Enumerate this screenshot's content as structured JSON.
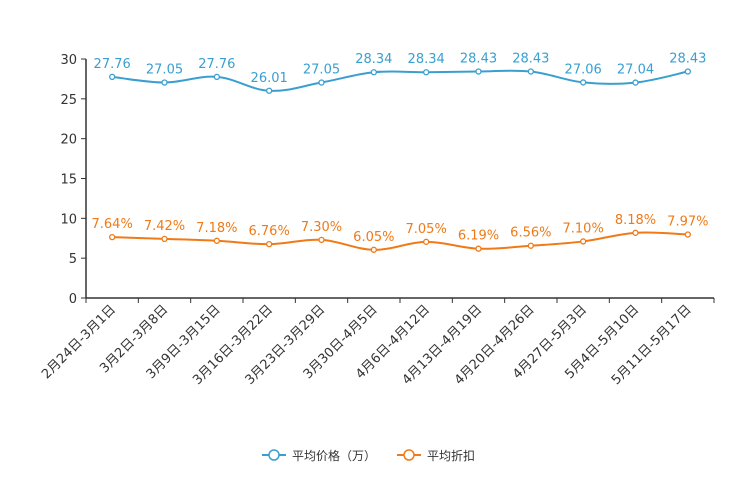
{
  "chart_data": {
    "type": "line",
    "title": "",
    "xlabel": "",
    "ylabel": "",
    "ylim": [
      0,
      30
    ],
    "yticks": [
      0,
      5,
      10,
      15,
      20,
      25,
      30
    ],
    "grid": false,
    "legend_position": "bottom-center",
    "categories": [
      "2月24日-3月1日",
      "3月2日-3月8日",
      "3月9日-3月15日",
      "3月16日-3月22日",
      "3月23日-3月29日",
      "3月30日-4月5日",
      "4月6日-4月12日",
      "4月13日-4月19日",
      "4月20日-4月26日",
      "4月27日-5月3日",
      "5月4日-5月10日",
      "5月11日-5月17日"
    ],
    "series": [
      {
        "name": "平均价格（万）",
        "color": "#3a9fd0",
        "values": [
          27.76,
          27.05,
          27.76,
          26.01,
          27.05,
          28.34,
          28.34,
          28.43,
          28.43,
          27.06,
          27.04,
          28.43
        ],
        "labels": [
          "27.76",
          "27.05",
          "27.76",
          "26.01",
          "27.05",
          "28.34",
          "28.34",
          "28.43",
          "28.43",
          "27.06",
          "27.04",
          "28.43"
        ]
      },
      {
        "name": "平均折扣",
        "color": "#f07a17",
        "values": [
          7.64,
          7.42,
          7.18,
          6.76,
          7.3,
          6.05,
          7.05,
          6.19,
          6.56,
          7.1,
          8.18,
          7.97
        ],
        "labels": [
          "7.64%",
          "7.42%",
          "7.18%",
          "6.76%",
          "7.30%",
          "6.05%",
          "7.05%",
          "6.19%",
          "6.56%",
          "7.10%",
          "8.18%",
          "7.97%"
        ]
      }
    ]
  }
}
